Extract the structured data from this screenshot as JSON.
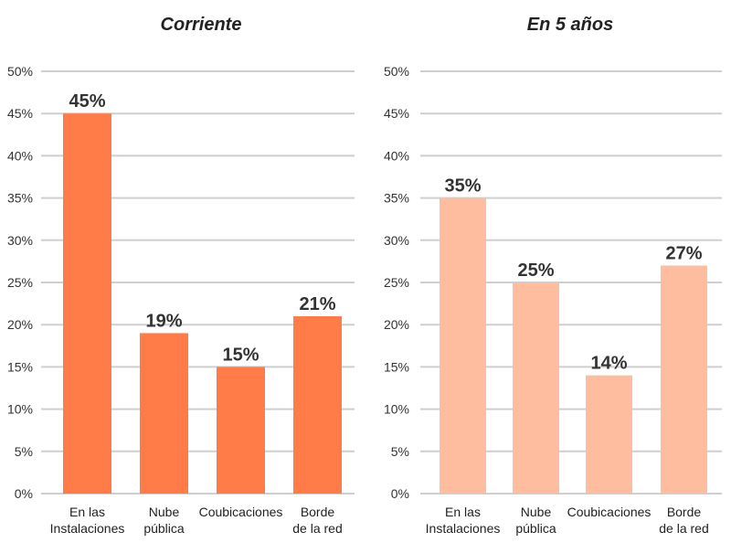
{
  "chart_data": [
    {
      "type": "bar",
      "title": "Corriente",
      "categories": [
        "En las\nInstalaciones",
        "Nube\npública",
        "Coubicaciones",
        "Borde\nde la red"
      ],
      "values": [
        45,
        19,
        15,
        21
      ],
      "value_labels": [
        "45%",
        "19%",
        "15%",
        "21%"
      ],
      "ylim": [
        0,
        50
      ],
      "yticks": [
        "0%",
        "5%",
        "10%",
        "15%",
        "20%",
        "25%",
        "30%",
        "35%",
        "40%",
        "45%",
        "50%"
      ],
      "color": "#FF7B47",
      "grid": true
    },
    {
      "type": "bar",
      "title": "En 5 años",
      "categories": [
        "En las\nInstalaciones",
        "Nube\npública",
        "Coubicaciones",
        "Borde\nde la red"
      ],
      "values": [
        35,
        25,
        14,
        27
      ],
      "value_labels": [
        "35%",
        "25%",
        "14%",
        "27%"
      ],
      "ylim": [
        0,
        50
      ],
      "yticks": [
        "0%",
        "5%",
        "10%",
        "15%",
        "20%",
        "25%",
        "30%",
        "35%",
        "40%",
        "45%",
        "50%"
      ],
      "color": "#FFBDA0",
      "grid": true
    }
  ]
}
